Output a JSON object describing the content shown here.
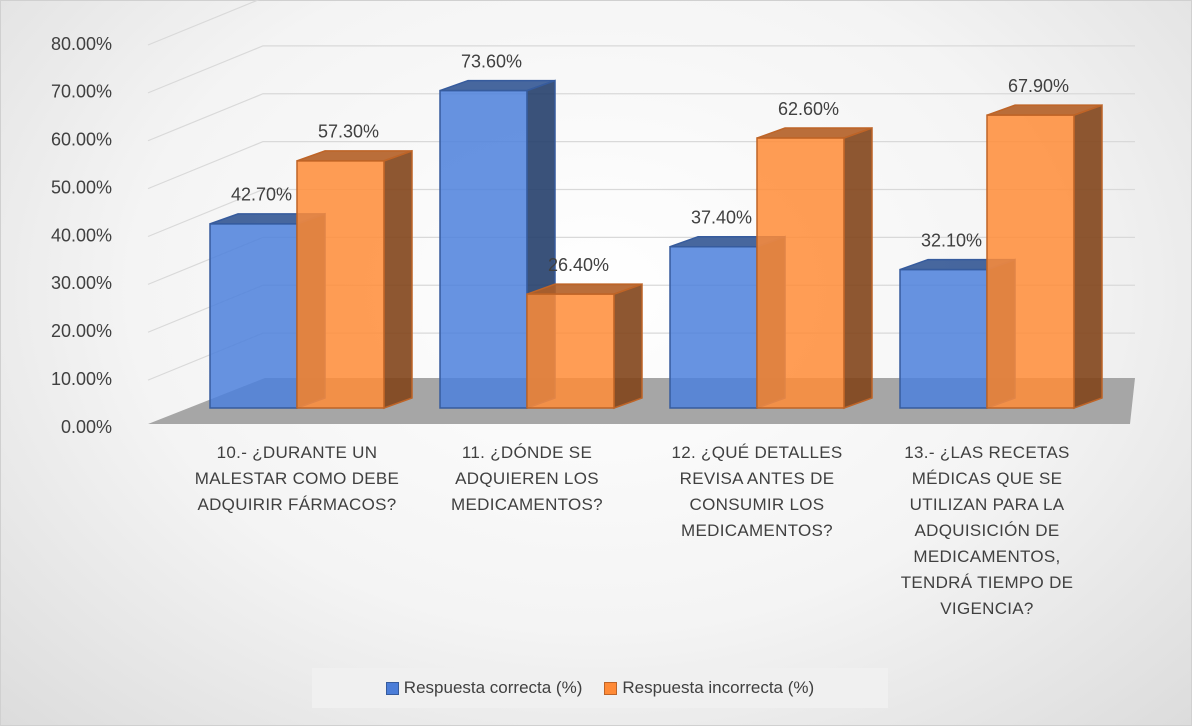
{
  "chart_data": {
    "type": "bar3d",
    "categories": [
      "10.- ¿DURANTE UN MALESTAR COMO DEBE ADQUIRIR FÁRMACOS?",
      "11. ¿DÓNDE SE ADQUIEREN LOS MEDICAMENTOS?",
      "12. ¿QUÉ DETALLES REVISA ANTES DE CONSUMIR LOS MEDICAMENTOS?",
      "13.- ¿LAS RECETAS MÉDICAS QUE SE UTILIZAN PARA LA ADQUISICIÓN DE MEDICAMENTOS, TENDRÁ TIEMPO DE VIGENCIA?"
    ],
    "series": [
      {
        "name": "Respuesta correcta (%)",
        "color": "#4472c4",
        "values": [
          42.7,
          73.6,
          37.4,
          32.1
        ],
        "value_labels": [
          "42.70%",
          "73.60%",
          "37.40%",
          "32.10%"
        ]
      },
      {
        "name": "Respuesta incorrecta (%)",
        "color": "#ed7d31",
        "values": [
          57.3,
          26.4,
          62.6,
          67.9
        ],
        "value_labels": [
          "57.30%",
          "26.40%",
          "62.60%",
          "67.90%"
        ]
      }
    ],
    "ylim": [
      0,
      80
    ],
    "yticks": [
      {
        "value": 0,
        "label": "0.00%"
      },
      {
        "value": 10,
        "label": "10.00%"
      },
      {
        "value": 20,
        "label": "20.00%"
      },
      {
        "value": 30,
        "label": "30.00%"
      },
      {
        "value": 40,
        "label": "40.00%"
      },
      {
        "value": 50,
        "label": "50.00%"
      },
      {
        "value": 60,
        "label": "60.00%"
      },
      {
        "value": 70,
        "label": "70.00%"
      },
      {
        "value": 80,
        "label": "80.00%"
      }
    ],
    "grid": true,
    "legend": "bottom"
  }
}
